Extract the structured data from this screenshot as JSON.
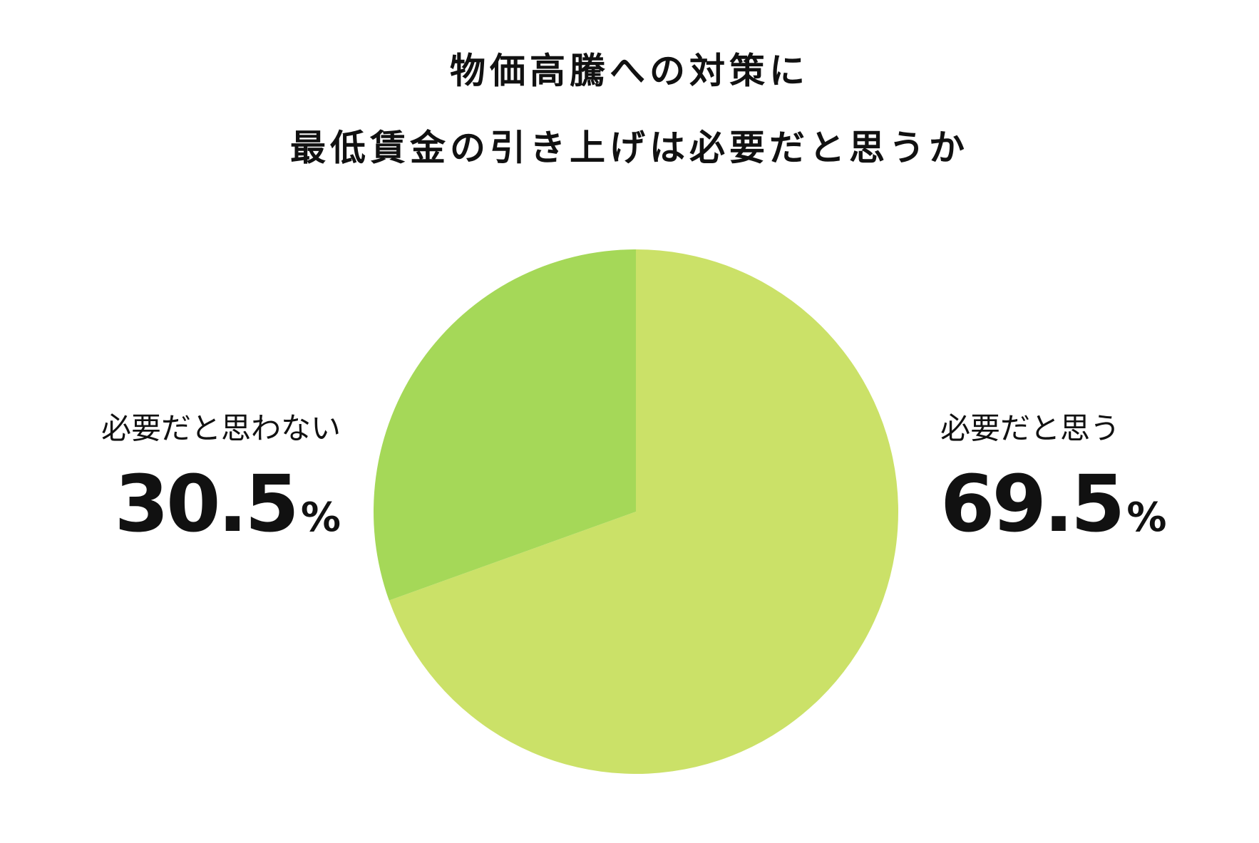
{
  "chart_data": {
    "type": "pie",
    "title": [
      "物価高騰への対策に",
      "最低賃金の引き上げは必要だと思うか"
    ],
    "categories": [
      "必要だと思う",
      "必要だと思わない"
    ],
    "values": [
      69.5,
      30.5
    ],
    "value_labels": [
      "69.5%",
      "30.5%"
    ],
    "colors": [
      "#cbe168",
      "#a5d858"
    ]
  }
}
